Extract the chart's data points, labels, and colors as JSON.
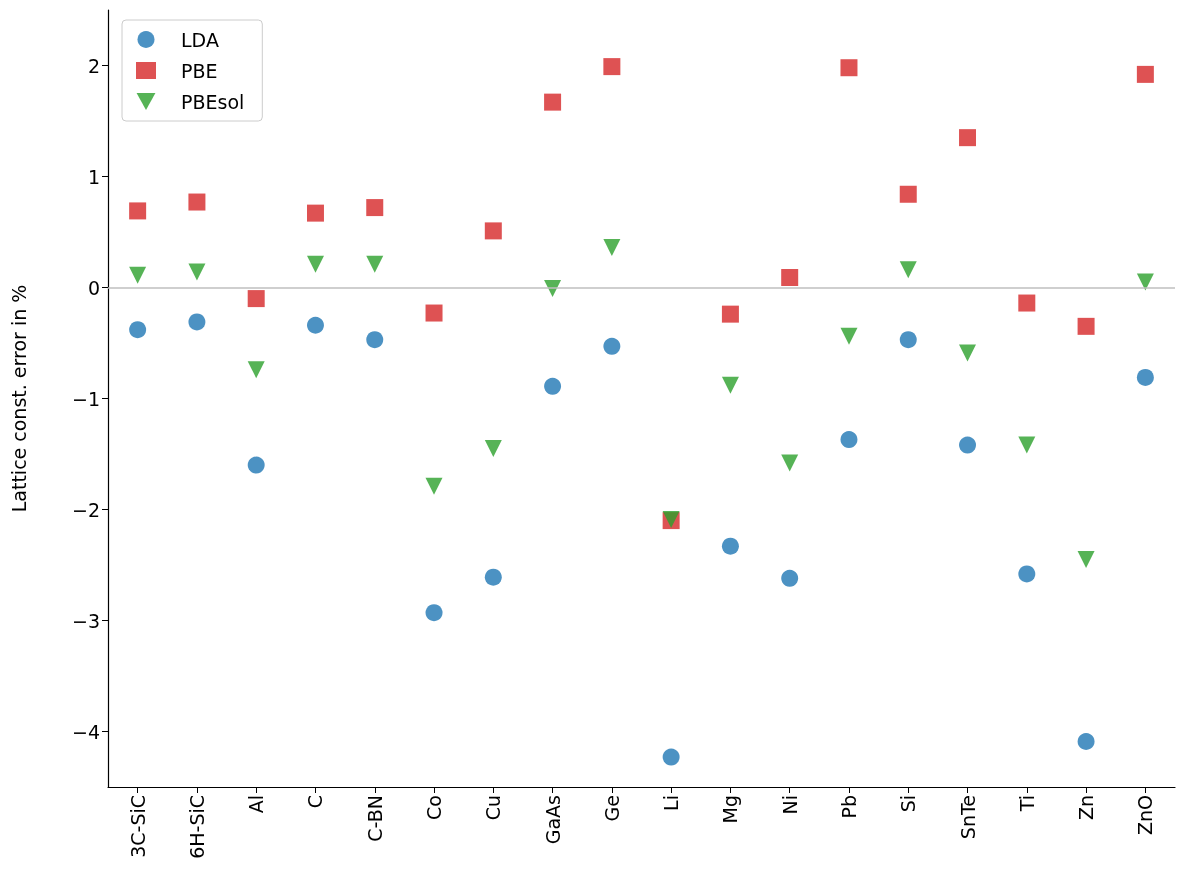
{
  "chart_data": {
    "type": "scatter",
    "ylabel": "Lattice const. error in %",
    "categories": [
      "3C-SiC",
      "6H-SiC",
      "Al",
      "C",
      "C-BN",
      "Co",
      "Cu",
      "GaAs",
      "Ge",
      "Li",
      "Mg",
      "Ni",
      "Pb",
      "Si",
      "SnTe",
      "Ti",
      "Zn",
      "ZnO"
    ],
    "series": [
      {
        "name": "LDA",
        "color": "#1f77b4",
        "marker": "circle",
        "values": [
          -0.38,
          -0.31,
          -1.6,
          -0.34,
          -0.47,
          -2.93,
          -2.61,
          -0.89,
          -0.53,
          -4.23,
          -2.33,
          -2.62,
          -1.37,
          -0.47,
          -1.42,
          -2.58,
          -4.09,
          -0.81
        ]
      },
      {
        "name": "PBE",
        "color": "#d62728",
        "marker": "square",
        "values": [
          0.69,
          0.77,
          -0.1,
          0.67,
          0.72,
          -0.23,
          0.51,
          1.67,
          1.99,
          -2.1,
          -0.24,
          0.09,
          1.98,
          0.84,
          1.35,
          -0.14,
          -0.35,
          1.92
        ]
      },
      {
        "name": "PBEsol",
        "color": "#2ca02c",
        "marker": "triangle",
        "values": [
          0.11,
          0.14,
          -0.74,
          0.21,
          0.21,
          -1.79,
          -1.45,
          -0.01,
          0.36,
          -2.09,
          -0.88,
          -1.58,
          -0.44,
          0.16,
          -0.59,
          -1.42,
          -2.45,
          0.05
        ]
      }
    ],
    "ylim": [
      -4.5,
      2.5
    ],
    "yticks": [
      {
        "value": -4,
        "label": "−4"
      },
      {
        "value": -3,
        "label": "−3"
      },
      {
        "value": -2,
        "label": "−2"
      },
      {
        "value": -1,
        "label": "−1"
      },
      0,
      1,
      2
    ],
    "ref_lines": [
      {
        "axis": "y",
        "value": 0,
        "color": "#bfbfbf"
      }
    ],
    "legend": "top left",
    "grid": false
  }
}
